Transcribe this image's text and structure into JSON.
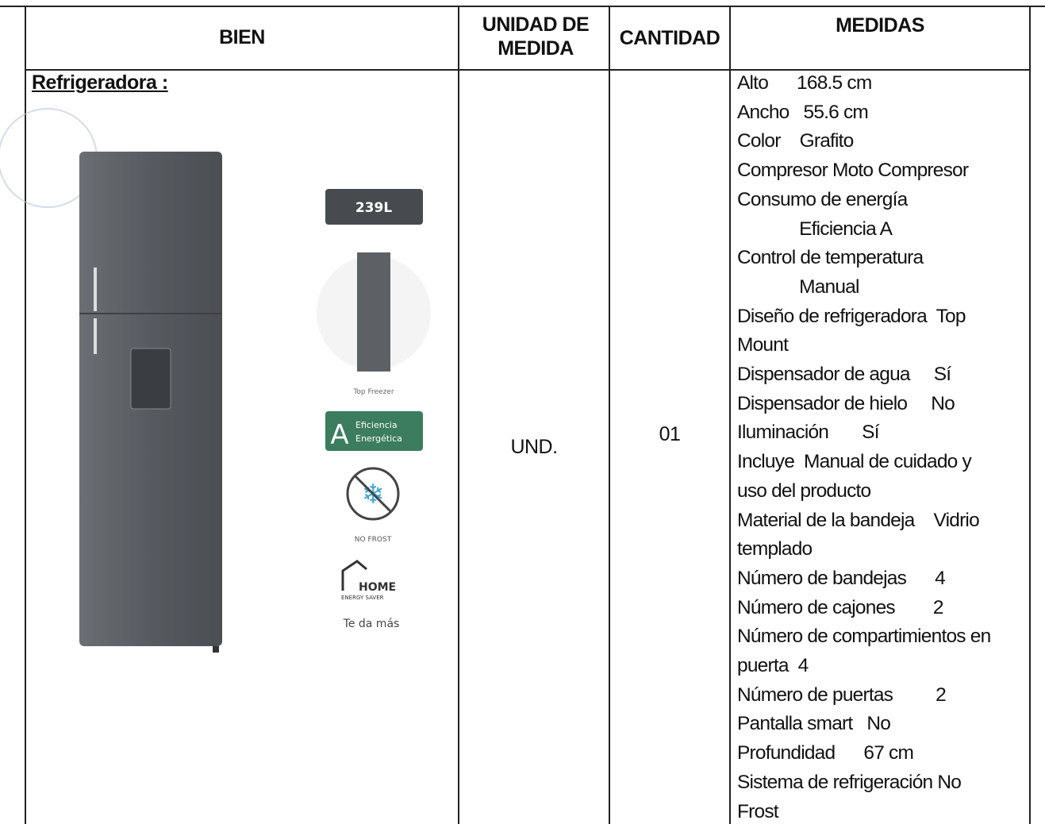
{
  "table": {
    "headers": [
      "BIEN",
      "UNIDAD DE MEDIDA",
      "CANTIDAD",
      "MEDIDAS"
    ],
    "rows": [
      {
        "bien": "Refrigeradora :",
        "unidad": "UND.",
        "cantidad": "01",
        "medidas": [
          "Alto      168.5 cm",
          "Ancho   55.6 cm",
          "Color    Grafito",
          "Compresor Moto Compresor",
          "Consumo de energía",
          "             Eficiencia A",
          "Control de temperatura",
          "             Manual",
          "Diseño de refrigeradora  Top",
          "Mount",
          "Dispensador de agua     Sí",
          "Dispensador de hielo     No",
          "Iluminación       Sí",
          "Incluye  Manual de cuidado y",
          "uso del producto",
          "Material de la bandeja    Vidrio",
          "templado",
          "Número de bandejas      4",
          "Número de cajones        2",
          "Número de compartimientos en",
          "puerta  4",
          "Número de puertas         2",
          "Pantalla smart   No",
          "Profundidad      67 cm",
          "Sistema de refrigeración No",
          "Frost"
        ]
      }
    ]
  },
  "product_image": {
    "capacity": "239L",
    "type": "Top Freezer",
    "efficiency_letter": "A",
    "efficiency_text": [
      "Eficiencia",
      "Energética"
    ],
    "frost": "NO FROST",
    "brand": "HOME",
    "brand_sub": "ENERGY SAVER",
    "slogan": "Te da más"
  }
}
